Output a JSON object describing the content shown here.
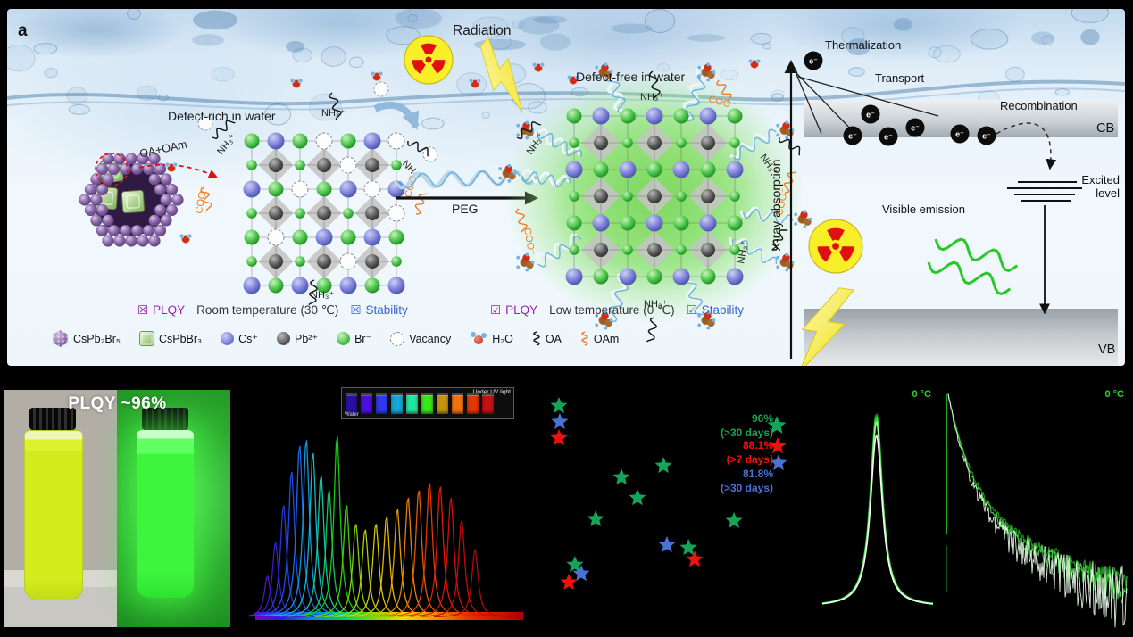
{
  "figure": {
    "panel_label": "a",
    "schematic": {
      "defect_rich_label": "Defect-rich in water",
      "defect_free_label": "Defect-free in water",
      "radiation_label": "Radiation",
      "oa_oam_label": "OA+OAm",
      "peg_label": "PEG",
      "nh3_label": "NH₃⁺",
      "coo_label": "COO⁻",
      "conditions": [
        {
          "plqy_mark": "☒",
          "plqy": "PLQY",
          "temperature": "Room temperature (30 ℃)",
          "stability_mark": "☒",
          "stability": "Stability"
        },
        {
          "plqy_mark": "☑",
          "plqy": "PLQY",
          "temperature": "Low temperature (0 ℃)",
          "stability_mark": "☑",
          "stability": "Stability"
        }
      ],
      "species_legend": [
        {
          "icon": "purple-nanocrystal-icon",
          "cls": "ic-crystal",
          "label": "CsPb₂Br₅"
        },
        {
          "icon": "green-cube-icon",
          "cls": "ic-cube",
          "label": "CsPbBr₃"
        },
        {
          "icon": "blue-sphere-icon",
          "cls": "ic-sph ic-cs",
          "label": "Cs⁺"
        },
        {
          "icon": "gray-sphere-icon",
          "cls": "ic-sph ic-pb",
          "label": "Pb²⁺"
        },
        {
          "icon": "green-sphere-icon",
          "cls": "ic-sph ic-br",
          "label": "Br⁻"
        },
        {
          "icon": "vacancy-icon",
          "cls": "ic-vac",
          "label": "Vacancy"
        },
        {
          "icon": "water-molecule-icon",
          "cls": "ic-h2o",
          "label": "H₂O"
        },
        {
          "icon": "black-squiggle-icon",
          "cls": "ic-oa",
          "label": "OA"
        },
        {
          "icon": "orange-squiggle-icon",
          "cls": "ic-oam",
          "label": "OAm"
        }
      ],
      "energy_diagram": {
        "axis_label": "X-ray absorption",
        "thermalization": "Thermalization",
        "transport": "Transport",
        "recombination": "Recombination",
        "cb": "CB",
        "vb": "VB",
        "excited_level_line1": "Excited",
        "excited_level_line2": "level",
        "visible_emission": "Visible emission",
        "electron": "e⁻"
      },
      "colors": {
        "plqy": "#9c1fb0",
        "stability": "#3a64c8",
        "oam_orange": "#ee7d28"
      }
    },
    "photo_panel": {
      "caption": "PLQY ~96%"
    },
    "spectra_panel": {
      "inset": {
        "water_label": "Water",
        "uv_label": "Under UV light",
        "vial_colors": [
          "#2c0ea0",
          "#4a10e0",
          "#3038f0",
          "#14a8d4",
          "#1ee89c",
          "#38e818",
          "#c49410",
          "#ee7410",
          "#e23808",
          "#c21212"
        ]
      }
    },
    "scatter_panel": {
      "annotations": [
        {
          "value": "96%",
          "duration": "(>30 days)",
          "color": "#1fa34c"
        },
        {
          "value": "88.1%",
          "duration": "(>7 days)",
          "color": "#f01010"
        },
        {
          "value": "81.8%",
          "duration": "(>30 days)",
          "color": "#4a72d4"
        }
      ]
    },
    "pl_panel": {
      "label": "0 °C"
    },
    "decay_panel": {
      "label": "0 °C"
    }
  },
  "chart_data": [
    {
      "id": "tunable-emission-spectra",
      "type": "line",
      "title": "",
      "axes_visible": false,
      "note": "Series of normalized narrow PL emission peaks spanning the visible spectrum; colors follow emission wavelength (blue to red); rainbow strip along baseline",
      "peaks": [
        {
          "center_frac": 0.045,
          "height_frac": 0.22,
          "color": "#5018c8"
        },
        {
          "center_frac": 0.075,
          "height_frac": 0.4,
          "color": "#3820d8"
        },
        {
          "center_frac": 0.105,
          "height_frac": 0.6,
          "color": "#2838e8"
        },
        {
          "center_frac": 0.135,
          "height_frac": 0.78,
          "color": "#1e50f0"
        },
        {
          "center_frac": 0.165,
          "height_frac": 0.92,
          "color": "#1670f0"
        },
        {
          "center_frac": 0.19,
          "height_frac": 0.95,
          "color": "#10a0e0"
        },
        {
          "center_frac": 0.215,
          "height_frac": 0.88,
          "color": "#10c0d0"
        },
        {
          "center_frac": 0.245,
          "height_frac": 0.76,
          "color": "#10d0a8"
        },
        {
          "center_frac": 0.275,
          "height_frac": 0.68,
          "color": "#18cc60"
        },
        {
          "center_frac": 0.305,
          "height_frac": 0.97,
          "color": "#14d414"
        },
        {
          "center_frac": 0.34,
          "height_frac": 0.6,
          "color": "#48d808"
        },
        {
          "center_frac": 0.375,
          "height_frac": 0.5,
          "color": "#88d808"
        },
        {
          "center_frac": 0.41,
          "height_frac": 0.47,
          "color": "#b8d808"
        },
        {
          "center_frac": 0.45,
          "height_frac": 0.5,
          "color": "#dcd400"
        },
        {
          "center_frac": 0.49,
          "height_frac": 0.54,
          "color": "#f0c400"
        },
        {
          "center_frac": 0.53,
          "height_frac": 0.58,
          "color": "#f0a800"
        },
        {
          "center_frac": 0.57,
          "height_frac": 0.64,
          "color": "#f08800"
        },
        {
          "center_frac": 0.61,
          "height_frac": 0.68,
          "color": "#f06000"
        },
        {
          "center_frac": 0.65,
          "height_frac": 0.72,
          "color": "#ee3c00"
        },
        {
          "center_frac": 0.69,
          "height_frac": 0.7,
          "color": "#e82000"
        },
        {
          "center_frac": 0.73,
          "height_frac": 0.64,
          "color": "#dc1010"
        },
        {
          "center_frac": 0.77,
          "height_frac": 0.52,
          "color": "#c80c0c"
        },
        {
          "center_frac": 0.82,
          "height_frac": 0.36,
          "color": "#b40a0a"
        }
      ]
    },
    {
      "id": "plqy-stability-scatter",
      "type": "scatter",
      "axes_visible": false,
      "marker": "star",
      "series": [
        {
          "name": "PEG 0 °C (96%, >30 days)",
          "color": "#16a45a",
          "points_frac": [
            [
              0.047,
              0.912
            ],
            [
              0.44,
              0.676
            ],
            [
              0.282,
              0.63
            ],
            [
              0.342,
              0.549
            ],
            [
              0.185,
              0.465
            ],
            [
              0.705,
              0.458
            ],
            [
              0.534,
              0.352
            ],
            [
              0.107,
              0.285
            ]
          ]
        },
        {
          "name": "81.8% (>30 days)",
          "color": "#4a72d4",
          "points_frac": [
            [
              0.05,
              0.849
            ],
            [
              0.453,
              0.363
            ],
            [
              0.131,
              0.25
            ]
          ]
        },
        {
          "name": "88.1% (>7 days)",
          "color": "#ee1111",
          "points_frac": [
            [
              0.047,
              0.785
            ],
            [
              0.557,
              0.306
            ],
            [
              0.084,
              0.215
            ]
          ]
        }
      ]
    },
    {
      "id": "pl-spectrum-0C",
      "type": "line",
      "label": "0 °C",
      "note": "Overlaid narrow PL emission peaks (stable over time) on black background",
      "center_frac": 0.49,
      "curves": [
        {
          "color": "#168c16",
          "height_frac": 0.84
        },
        {
          "color": "#2fd32f",
          "height_frac": 0.83
        },
        {
          "color": "#9cf09c",
          "height_frac": 0.81
        },
        {
          "color": "#ffffff",
          "height_frac": 0.75
        }
      ]
    },
    {
      "id": "pl-decay-0C",
      "type": "line",
      "label": "0 °C",
      "note": "Time-resolved PL decay traces (log-style), noise grows toward tail; vertical IRF spike at left",
      "traces": [
        {
          "color": "#1fae1f",
          "noise": 0.018,
          "slope": 0.96
        },
        {
          "color": "#52e052",
          "noise": 0.03,
          "slope": 1.0
        },
        {
          "color": "#eafdea",
          "noise": 0.055,
          "slope": 1.06
        }
      ]
    }
  ]
}
